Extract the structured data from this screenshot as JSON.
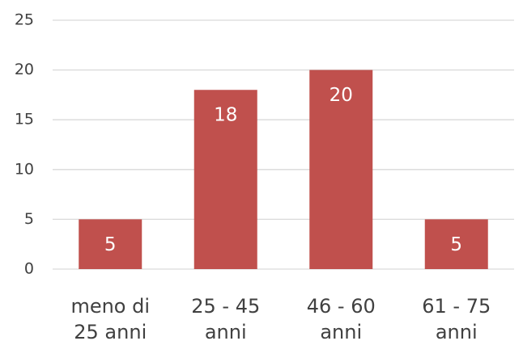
{
  "chart_data": {
    "type": "bar",
    "categories": [
      "meno di 25 anni",
      "25 - 45 anni",
      "46 - 60 anni",
      "61 - 75 anni"
    ],
    "values": [
      5,
      18,
      20,
      5
    ],
    "color": "#c0504d",
    "ylim": [
      0,
      25
    ],
    "yticks": [
      0,
      5,
      10,
      15,
      20,
      25
    ],
    "grid": true
  }
}
